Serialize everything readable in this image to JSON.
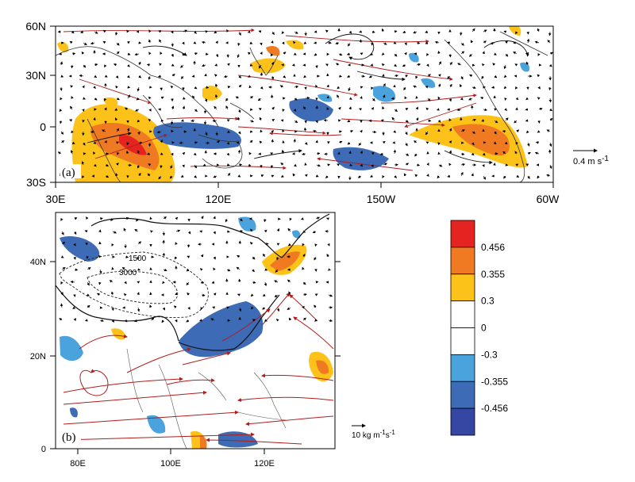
{
  "panel_a": {
    "label": "(a)",
    "lat_ticks": [
      "60N",
      "30N",
      "0",
      "30S"
    ],
    "lon_ticks": [
      "30E",
      "120E",
      "150W",
      "60W"
    ],
    "ref_vector_label": "0.4 m s",
    "ref_vector_exp": "-1"
  },
  "panel_b": {
    "label": "(b)",
    "lat_ticks": [
      "40N",
      "20N",
      "0"
    ],
    "lon_ticks": [
      "80E",
      "100E",
      "120E"
    ],
    "contours": [
      "1500",
      "3000"
    ],
    "ref_vector_label": "10 kg m",
    "ref_vector_exp1": "-1",
    "ref_vector_mid": "s",
    "ref_vector_exp2": "-1"
  },
  "colorbar": {
    "labels": [
      "0.456",
      "0.355",
      "0.3",
      "0",
      "-0.3",
      "-0.355",
      "-0.456"
    ],
    "colors": [
      "#e52421",
      "#f07a22",
      "#fdc21a",
      "#ffffff",
      "#ffffff",
      "#4aa3dc",
      "#3d6bb5",
      "#3546a3"
    ]
  },
  "colors": {
    "positive_shade": "#f07a22",
    "negative_shade": "#3d6bb5",
    "significant_vector": "#b01c1c",
    "vector": "#000000"
  }
}
